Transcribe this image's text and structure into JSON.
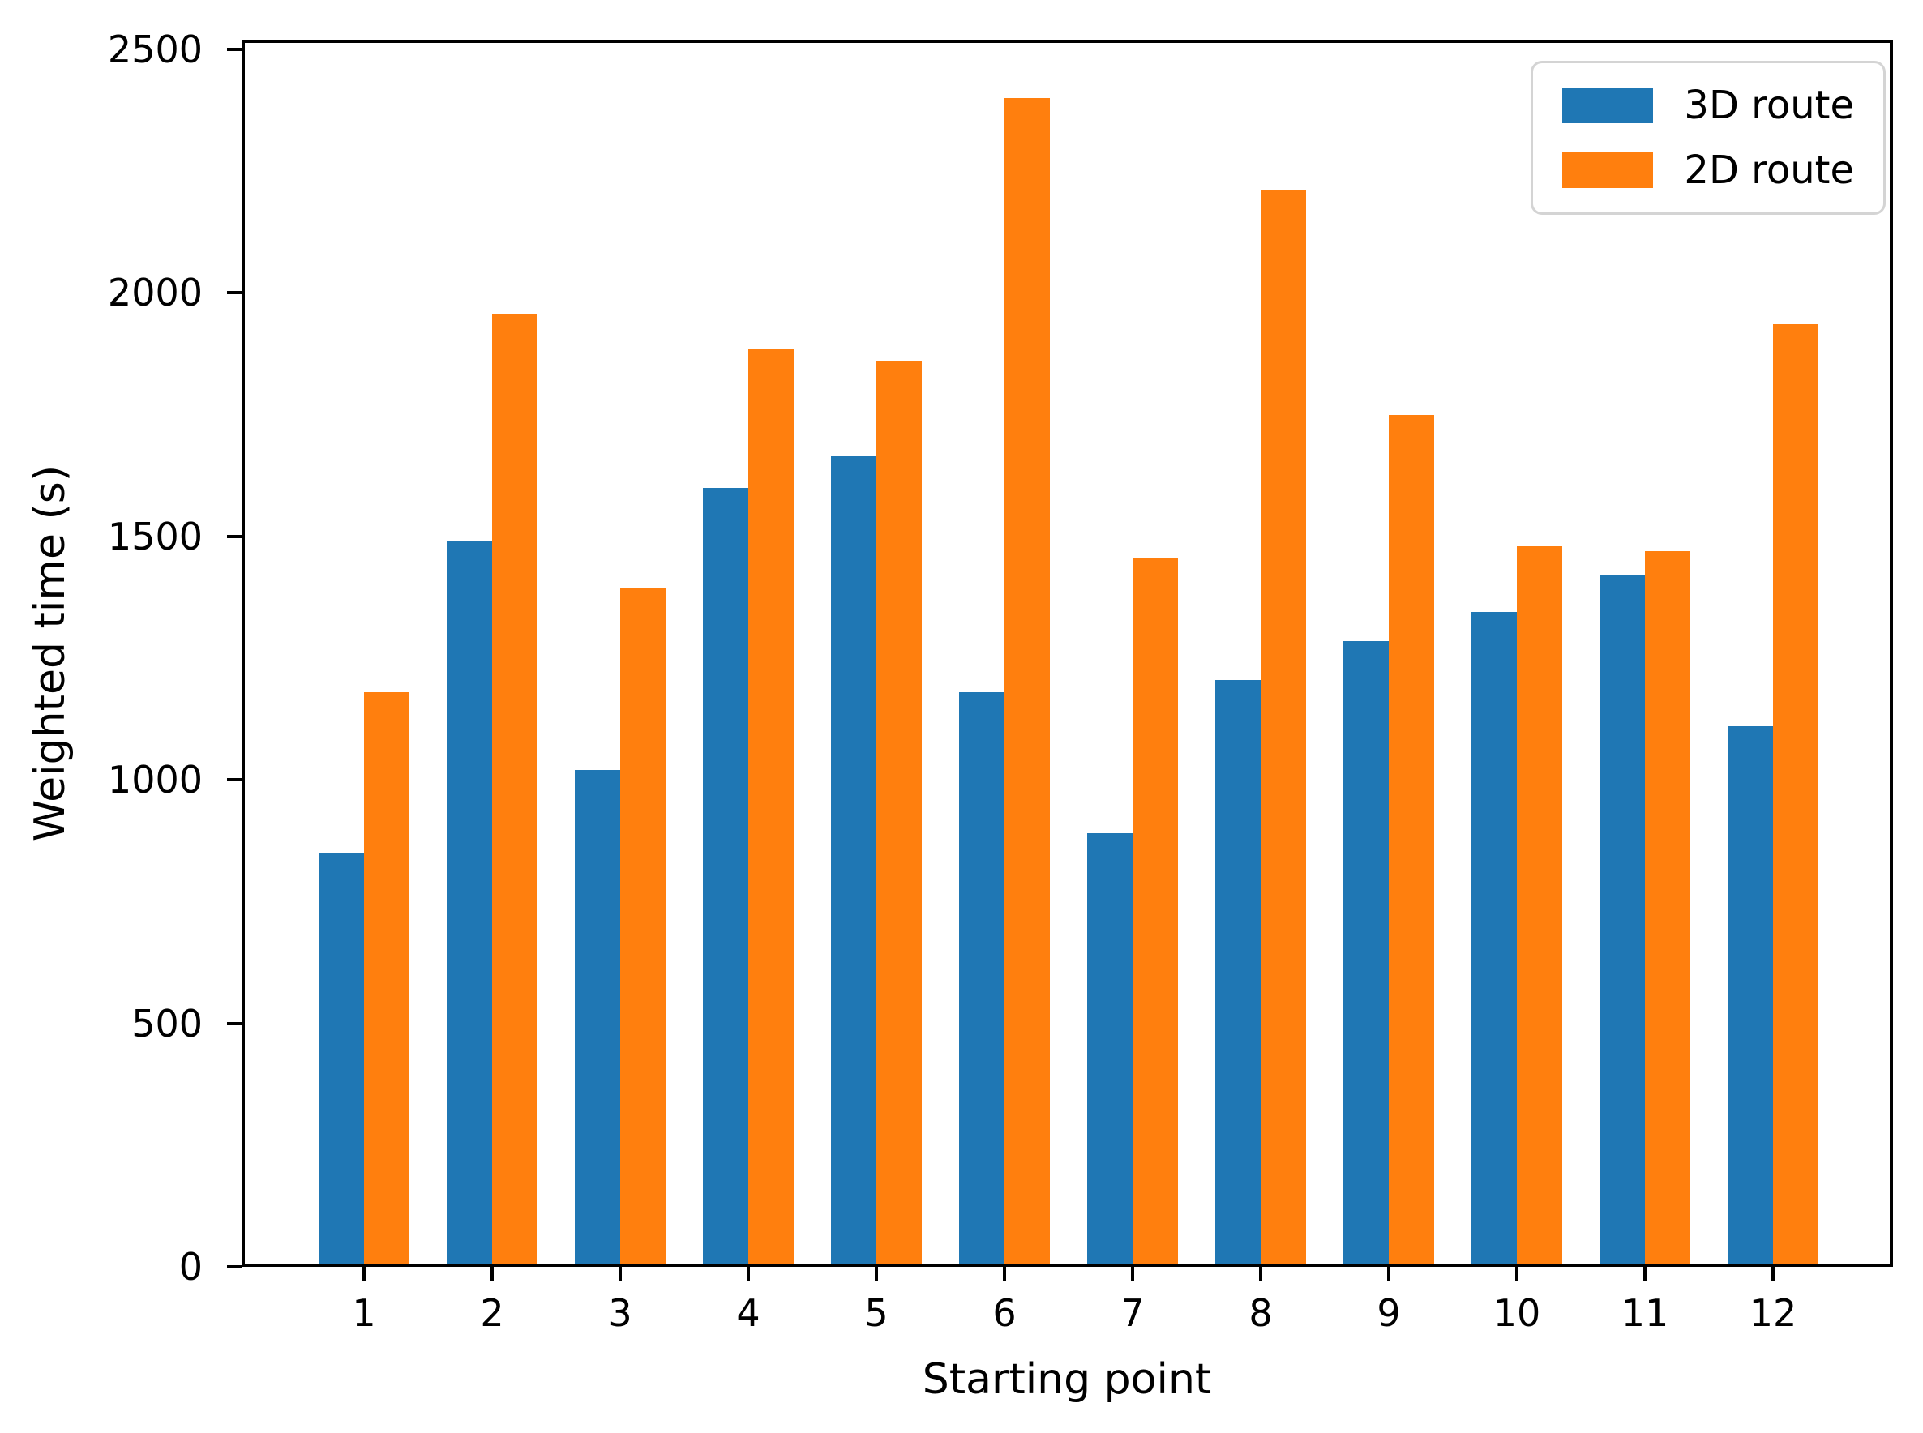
{
  "chart_data": {
    "type": "bar",
    "title": "",
    "xlabel": "Starting point",
    "ylabel": "Weighted time (s)",
    "categories": [
      "1",
      "2",
      "3",
      "4",
      "5",
      "6",
      "7",
      "8",
      "9",
      "10",
      "11",
      "12"
    ],
    "series": [
      {
        "name": "3D route",
        "color": "#1f77b4",
        "values": [
          850,
          1490,
          1020,
          1600,
          1665,
          1180,
          890,
          1205,
          1285,
          1345,
          1420,
          1110
        ]
      },
      {
        "name": "2D route",
        "color": "#ff7f0e",
        "values": [
          1180,
          1955,
          1395,
          1885,
          1860,
          2400,
          1455,
          2210,
          1750,
          1480,
          1470,
          1935
        ]
      }
    ],
    "ylim": [
      0,
      2520
    ],
    "yticks": [
      0,
      500,
      1000,
      1500,
      2000,
      2500
    ],
    "bar_width_units": 0.35,
    "legend_position": "upper right",
    "grid": false,
    "axis_color": "#000000",
    "background_color": "#ffffff"
  }
}
